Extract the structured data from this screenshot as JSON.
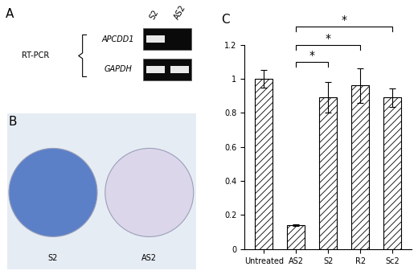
{
  "panels": {
    "A": {
      "label": "A",
      "method": "RT-PCR",
      "lanes": [
        "S2",
        "AS2"
      ],
      "rows": [
        {
          "gene": "APCDD1",
          "bands": [
            true,
            false
          ]
        },
        {
          "gene": "GAPDH",
          "bands": [
            true,
            true
          ]
        }
      ]
    },
    "B": {
      "label": "B",
      "dishes": [
        {
          "label": "S2",
          "color": "#5b80c8"
        },
        {
          "label": "AS2",
          "color": "#dcd6ea"
        }
      ]
    }
  },
  "chart_data": {
    "type": "bar",
    "title": "C",
    "categories": [
      "Untreated",
      "AS2",
      "S2",
      "R2",
      "Sc2"
    ],
    "values": [
      1.0,
      0.14,
      0.89,
      0.96,
      0.89
    ],
    "errors": [
      0.05,
      0.005,
      0.09,
      0.1,
      0.055
    ],
    "color": "#ffffff",
    "ylim": [
      0,
      1.2
    ],
    "yticks": [
      0,
      0.2,
      0.4,
      0.6,
      0.8,
      1,
      1.2
    ],
    "significance": [
      {
        "categories": [
          "AS2",
          "S2"
        ],
        "label": "*"
      },
      {
        "categories": [
          "AS2",
          "R2"
        ],
        "label": "*"
      },
      {
        "categories": [
          "AS2",
          "Sc2"
        ],
        "label": "*"
      }
    ]
  }
}
